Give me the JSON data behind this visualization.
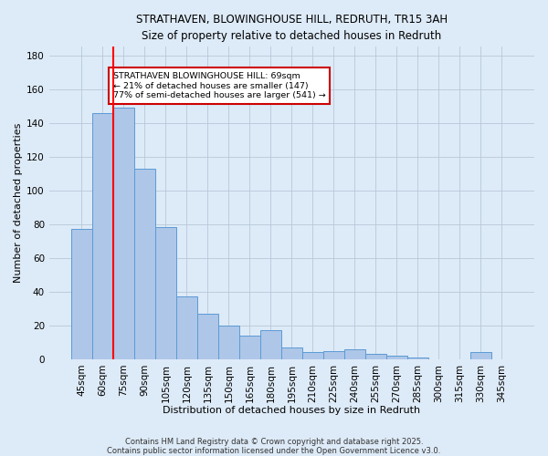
{
  "title1": "STRATHAVEN, BLOWINGHOUSE HILL, REDRUTH, TR15 3AH",
  "title2": "Size of property relative to detached houses in Redruth",
  "xlabel": "Distribution of detached houses by size in Redruth",
  "ylabel": "Number of detached properties",
  "bar_labels": [
    "45sqm",
    "60sqm",
    "75sqm",
    "90sqm",
    "105sqm",
    "120sqm",
    "135sqm",
    "150sqm",
    "165sqm",
    "180sqm",
    "195sqm",
    "210sqm",
    "225sqm",
    "240sqm",
    "255sqm",
    "270sqm",
    "285sqm",
    "300sqm",
    "315sqm",
    "330sqm",
    "345sqm"
  ],
  "bar_values": [
    77,
    146,
    149,
    113,
    78,
    37,
    27,
    20,
    14,
    17,
    7,
    4,
    5,
    6,
    3,
    2,
    1,
    0,
    0,
    4,
    0
  ],
  "bar_color": "#aec6e8",
  "bar_edgecolor": "#5b9bd5",
  "annotation_text": "STRATHAVEN BLOWINGHOUSE HILL: 69sqm\n← 21% of detached houses are smaller (147)\n77% of semi-detached houses are larger (541) →",
  "red_line_x": 1.5,
  "annotation_box_color": "#ffffff",
  "annotation_box_edgecolor": "#cc0000",
  "footnote1": "Contains HM Land Registry data © Crown copyright and database right 2025.",
  "footnote2": "Contains public sector information licensed under the Open Government Licence v3.0.",
  "bg_color": "#ddeaf7",
  "plot_bg_color": "#ddeaf7",
  "ylim": [
    0,
    185
  ],
  "yticks": [
    0,
    20,
    40,
    60,
    80,
    100,
    120,
    140,
    160,
    180
  ]
}
